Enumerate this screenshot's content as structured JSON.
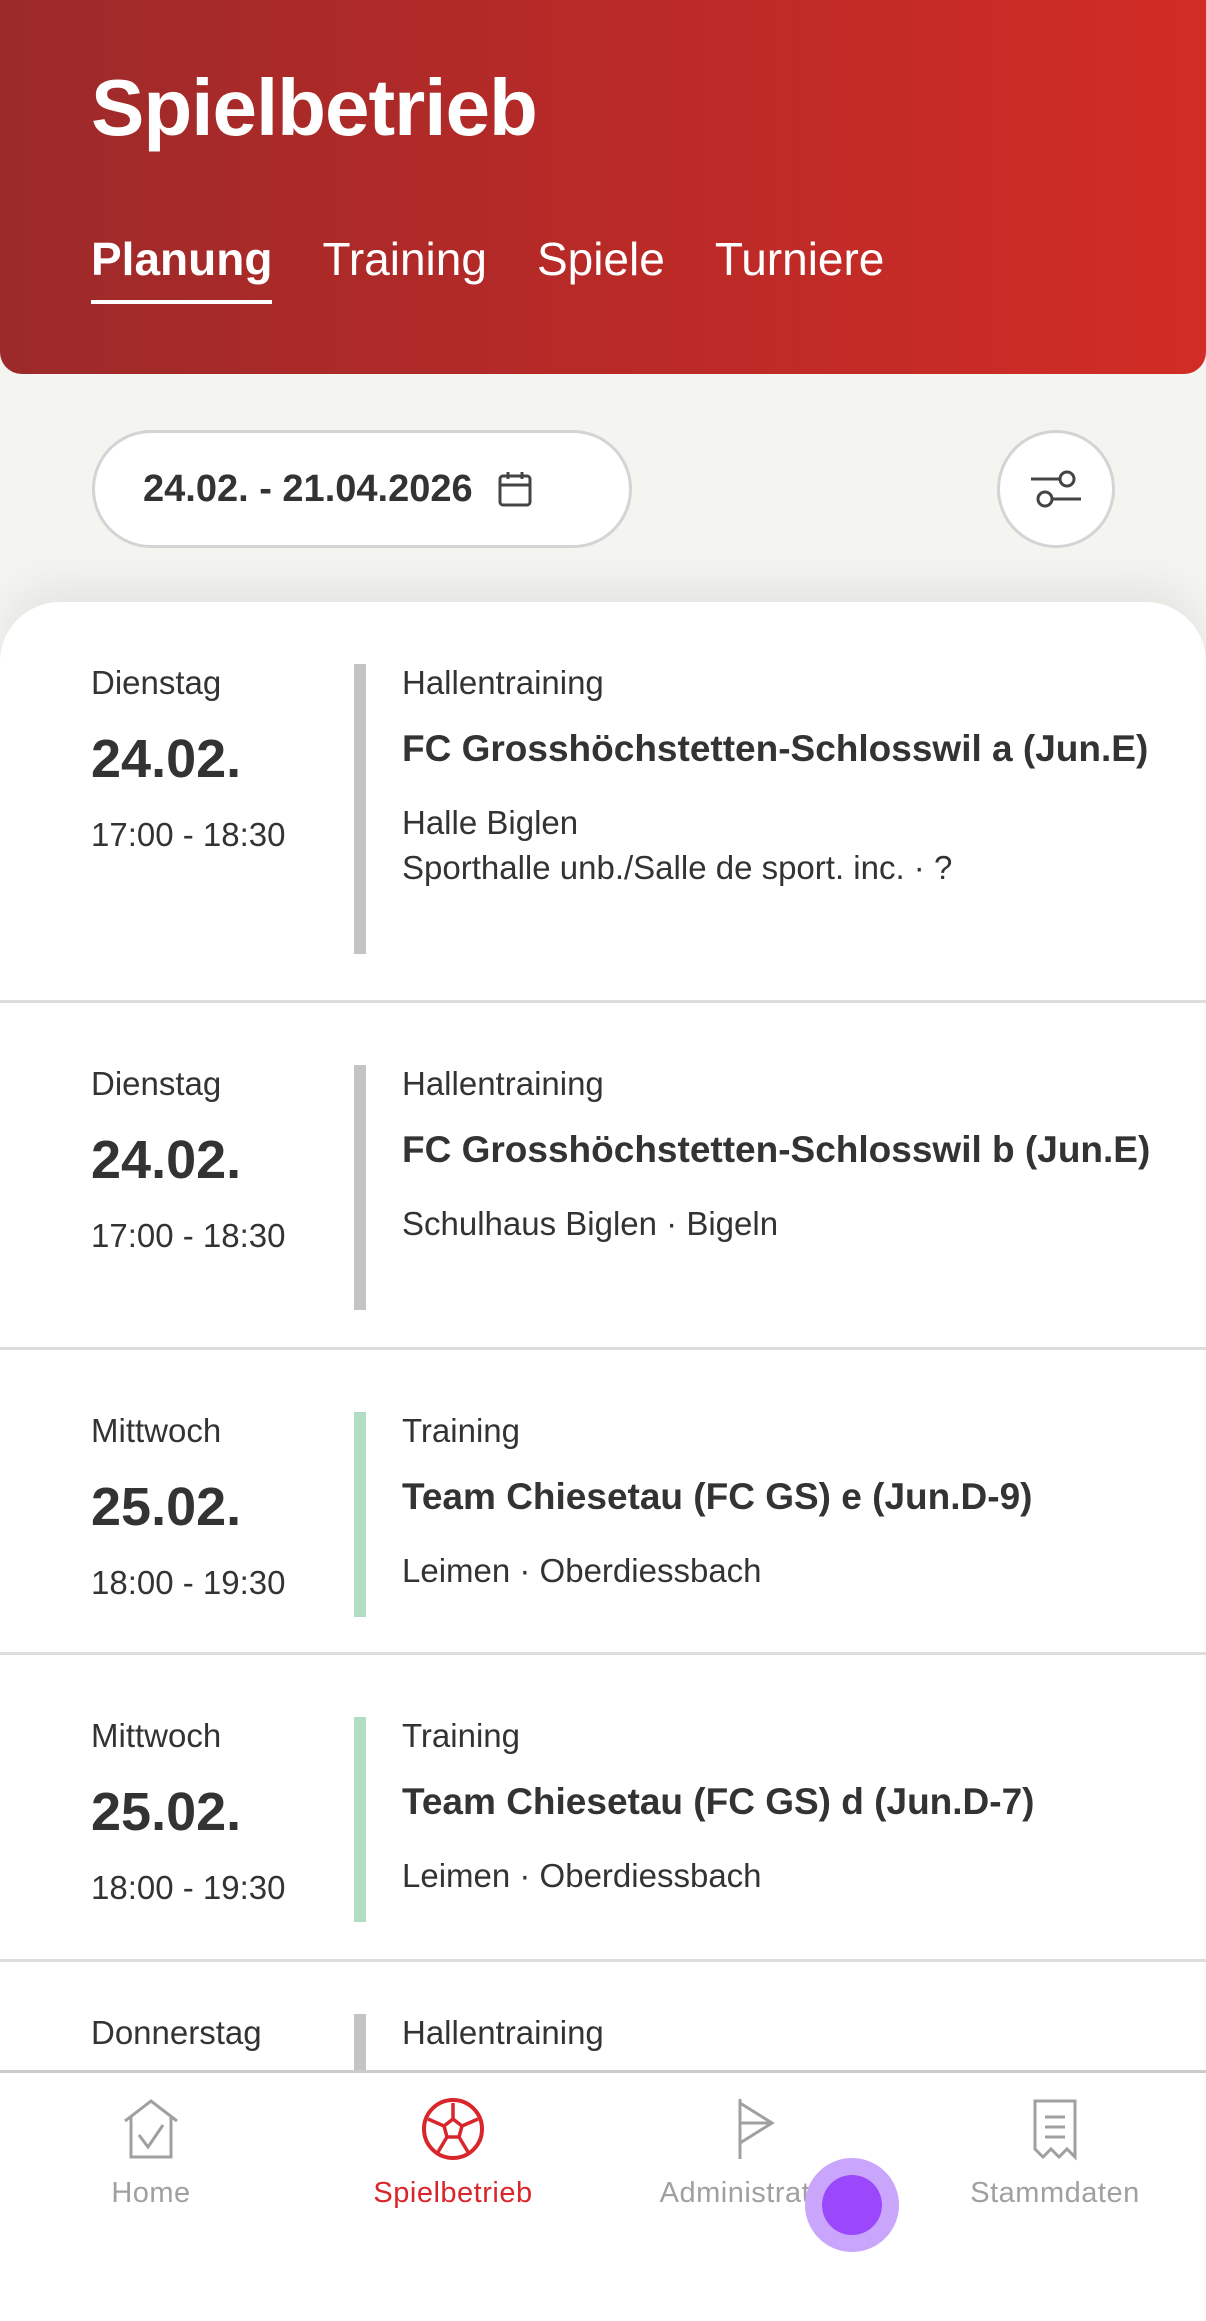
{
  "header": {
    "title": "Spielbetrieb",
    "tabs": [
      {
        "label": "Planung",
        "active": true
      },
      {
        "label": "Training"
      },
      {
        "label": "Spiele"
      },
      {
        "label": "Turniere"
      }
    ]
  },
  "filter": {
    "date_range": "24.02. - 21.04.2026",
    "calendar_icon": "calendar-icon",
    "filter_icon": "sliders-icon"
  },
  "colors": {
    "accent": "#d8262b",
    "bar_hall": "#c4c4c4",
    "bar_training": "#b3dcc4"
  },
  "events": [
    {
      "weekday": "Dienstag",
      "date": "24.02.",
      "time": "17:00 - 18:30",
      "type": "Hallentraining",
      "team": "FC Grosshöchstetten-Schlosswil a (Jun.E)",
      "location1": "Halle Biglen",
      "location2": "Sporthalle unb./Salle de sport. inc. · ?"
    },
    {
      "weekday": "Dienstag",
      "date": "24.02.",
      "time": "17:00 - 18:30",
      "type": "Hallentraining",
      "team": "FC Grosshöchstetten-Schlosswil b (Jun.E)",
      "location1": "Schulhaus Biglen · Bigeln"
    },
    {
      "weekday": "Mittwoch",
      "date": "25.02.",
      "time": "18:00 - 19:30",
      "type": "Training",
      "team": "Team Chiesetau (FC GS) e (Jun.D-9)",
      "location1": "Leimen · Oberdiessbach"
    },
    {
      "weekday": "Mittwoch",
      "date": "25.02.",
      "time": "18:00 - 19:30",
      "type": "Training",
      "team": "Team Chiesetau (FC GS) d (Jun.D-7)",
      "location1": "Leimen · Oberdiessbach"
    },
    {
      "weekday": "Donnerstag",
      "type": "Hallentraining"
    }
  ],
  "nav": [
    {
      "label": "Home",
      "icon": "home-check-icon"
    },
    {
      "label": "Spielbetrieb",
      "icon": "soccer-ball-icon",
      "active": true
    },
    {
      "label": "Administration",
      "icon": "flag-icon"
    },
    {
      "label": "Stammdaten",
      "icon": "receipt-icon"
    }
  ]
}
